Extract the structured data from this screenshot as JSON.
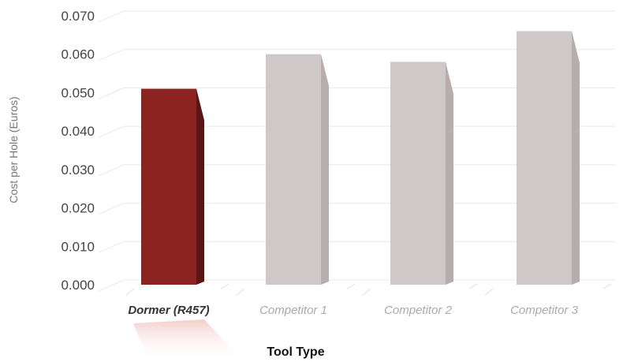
{
  "chart_data": {
    "type": "bar",
    "title": "",
    "xlabel": "Tool Type",
    "ylabel": "Cost per Hole (Euros)",
    "ylim": [
      0,
      0.07
    ],
    "yticks": [
      "0.000",
      "0.010",
      "0.020",
      "0.030",
      "0.040",
      "0.050",
      "0.060",
      "0.070"
    ],
    "categories": [
      "Dormer (R457)",
      "Competitor 1",
      "Competitor 2",
      "Competitor 3"
    ],
    "values": [
      0.051,
      0.06,
      0.058,
      0.066
    ],
    "grid": true,
    "colors": {
      "highlight": "#8b2320",
      "highlight_side": "#5e1412",
      "bar": "#cfc8c9",
      "bar_side": "#b5adae",
      "grid": "#e8e8e8"
    }
  }
}
